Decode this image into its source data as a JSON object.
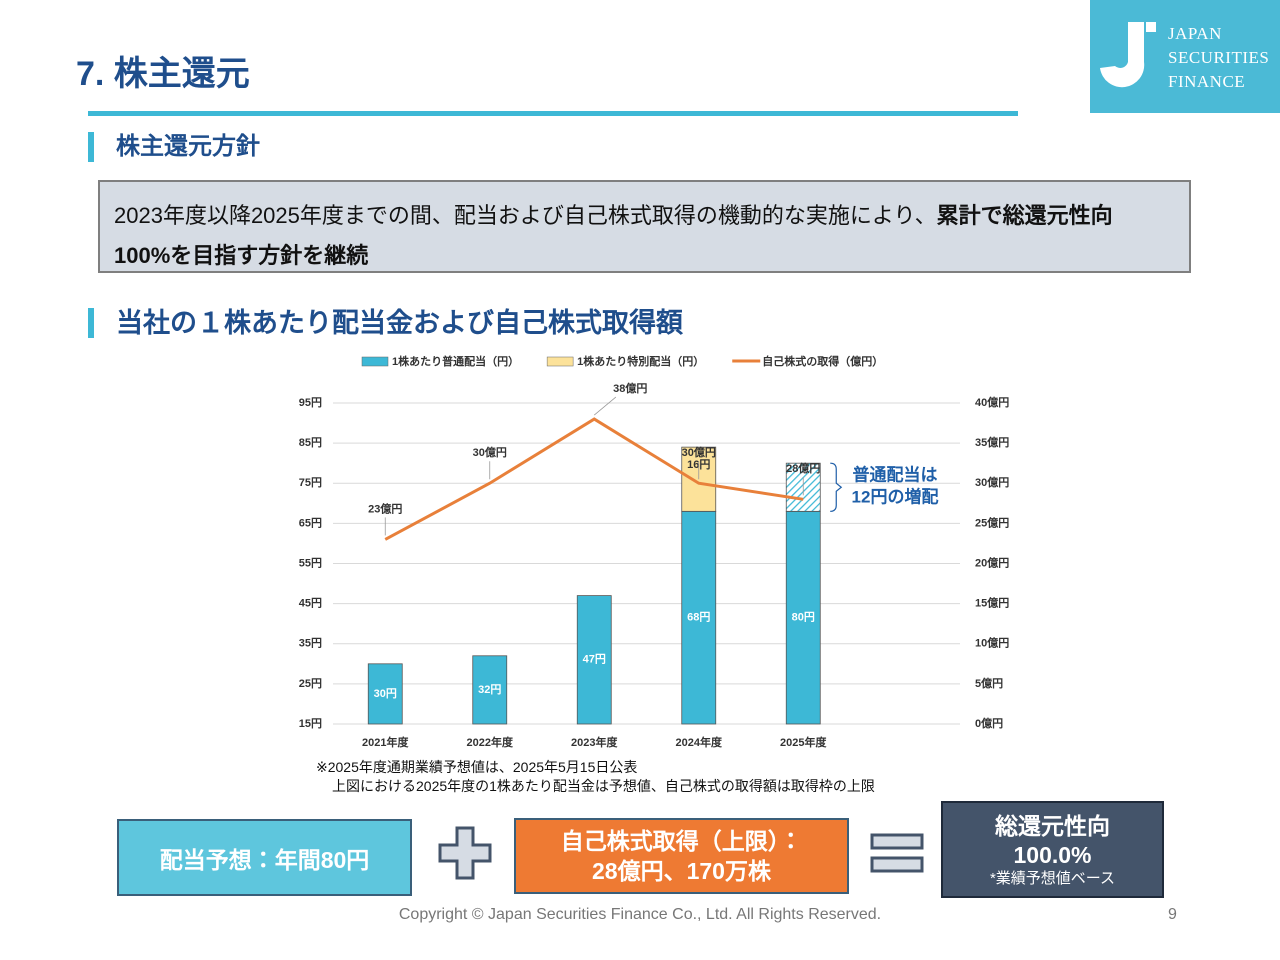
{
  "header": {
    "title": "7.  株主還元",
    "logo": [
      "JAPAN",
      "SECURITIES",
      "FINANCE"
    ]
  },
  "policy": {
    "heading": "株主還元方針",
    "text": "2023年度以降2025年度までの間、配当および自己株式取得の機動的な実施により、",
    "emphasis": [
      "累計で総還元性向",
      "100%を目指す方針を継続"
    ]
  },
  "chart_heading": "当社の１株あたり配当金および自己株式取得額",
  "chart_data": {
    "type": "bar",
    "categories": [
      "2021年度",
      "2022年度",
      "2023年度",
      "2024年度",
      "2025年度"
    ],
    "series": [
      {
        "name": "1株あたり普通配当（円）",
        "color": "#3DB8D6",
        "values": [
          30,
          32,
          47,
          68,
          80
        ],
        "value_labels": [
          "30円",
          "32円",
          "47円",
          "68円",
          "80円"
        ]
      },
      {
        "name": "1株あたり特別配当（円）",
        "color": "#FCE29A",
        "values": [
          null,
          null,
          null,
          16,
          null
        ],
        "value_labels": [
          null,
          null,
          null,
          "16円",
          null
        ]
      },
      {
        "name": "自己株式の取得（億円）",
        "type": "line",
        "axis": "y2",
        "color": "#E8803A",
        "values": [
          23,
          30,
          38,
          30,
          28
        ],
        "value_labels": [
          "23億円",
          "30億円",
          "38億円",
          "30億円",
          "28億円"
        ]
      }
    ],
    "ylim": [
      15,
      95
    ],
    "yticks": [
      {
        "value": 15,
        "label": "15円"
      },
      {
        "value": 25,
        "label": "25円"
      },
      {
        "value": 35,
        "label": "35円"
      },
      {
        "value": 45,
        "label": "45円"
      },
      {
        "value": 55,
        "label": "55円"
      },
      {
        "value": 65,
        "label": "65円"
      },
      {
        "value": 75,
        "label": "75円"
      },
      {
        "value": 85,
        "label": "85円"
      },
      {
        "value": 95,
        "label": "95円"
      }
    ],
    "y2lim": [
      0,
      40
    ],
    "y2ticks": [
      {
        "value": 0,
        "label": "0億円"
      },
      {
        "value": 5,
        "label": "5億円"
      },
      {
        "value": 10,
        "label": "10億円"
      },
      {
        "value": 15,
        "label": "15億円"
      },
      {
        "value": 20,
        "label": "20億円"
      },
      {
        "value": 25,
        "label": "25億円"
      },
      {
        "value": 30,
        "label": "30億円"
      },
      {
        "value": 35,
        "label": "35億円"
      },
      {
        "value": 40,
        "label": "40億円"
      }
    ],
    "grid": true,
    "legend": "top",
    "annotation": {
      "lines": [
        "普通配当は",
        "12円の増配"
      ],
      "increase": 12
    }
  },
  "notes": [
    "※2025年度通期業績予想値は、2025年5月15日公表",
    "上図における2025年度の1株あたり配当金は予想値、自己株式の取得額は取得枠の上限"
  ],
  "summary": {
    "dividend": "配当予想：年間80円",
    "buyback": [
      "自己株式取得（上限）：",
      "28億円、170万株"
    ],
    "payout": [
      "総還元性向",
      "100.0%",
      "*業績予想値ベース"
    ]
  },
  "footer": {
    "copyright": "Copyright © Japan Securities Finance Co., Ltd. All Rights Reserved.",
    "page": 9
  }
}
